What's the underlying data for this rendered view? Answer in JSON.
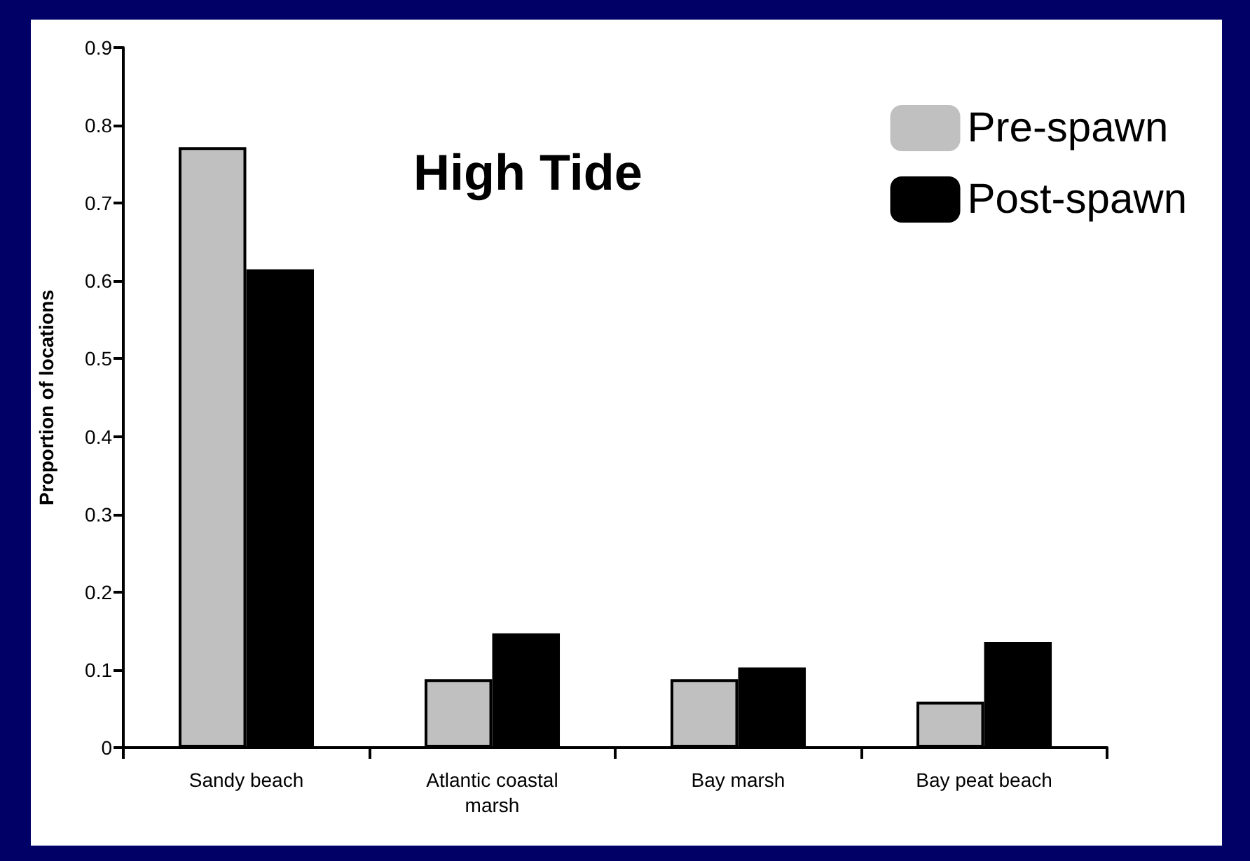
{
  "chart_data": {
    "type": "bar",
    "title": "High Tide",
    "ylabel": "Proportion of locations",
    "categories": [
      "Sandy beach",
      "Atlantic coastal\nmarsh",
      "Bay marsh",
      "Bay peat beach"
    ],
    "series": [
      {
        "name": "Pre-spawn",
        "color": "#c0c0c0",
        "values": [
          0.772,
          0.088,
          0.088,
          0.059
        ]
      },
      {
        "name": "Post-spawn",
        "color": "#000000",
        "values": [
          0.615,
          0.147,
          0.103,
          0.136
        ]
      }
    ],
    "ylim": [
      0,
      0.9
    ],
    "yticks": [
      0,
      0.1,
      0.2,
      0.3,
      0.4,
      0.5,
      0.6,
      0.7,
      0.8,
      0.9
    ],
    "grid": false,
    "legend": "top right"
  }
}
